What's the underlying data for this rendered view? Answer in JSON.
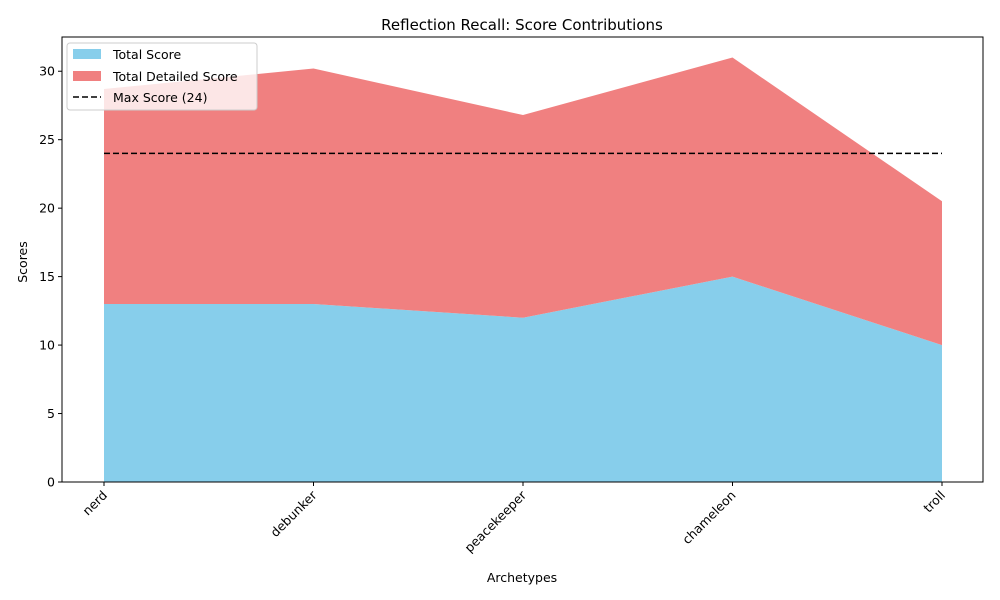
{
  "chart_data": {
    "type": "area",
    "stacked": true,
    "title": "Reflection Recall: Score Contributions",
    "xlabel": "Archetypes",
    "ylabel": "Scores",
    "categories": [
      "nerd",
      "debunker",
      "peacekeeper",
      "chameleon",
      "troll"
    ],
    "yticks": [
      0,
      5,
      10,
      15,
      20,
      25,
      30
    ],
    "ylim": [
      0,
      32.5
    ],
    "grid": false,
    "legend_position": "top-left",
    "series": [
      {
        "name": "Total Score",
        "values": [
          13,
          13,
          12,
          15,
          10
        ],
        "color": "#87CEEB"
      },
      {
        "name": "Total Detailed Score",
        "values": [
          15.7,
          17.2,
          14.8,
          16,
          10.5
        ],
        "color": "#F08080"
      }
    ],
    "reference_line": {
      "name": "Max Score (24)",
      "value": 24,
      "color": "#000000",
      "style": "dashed"
    }
  }
}
